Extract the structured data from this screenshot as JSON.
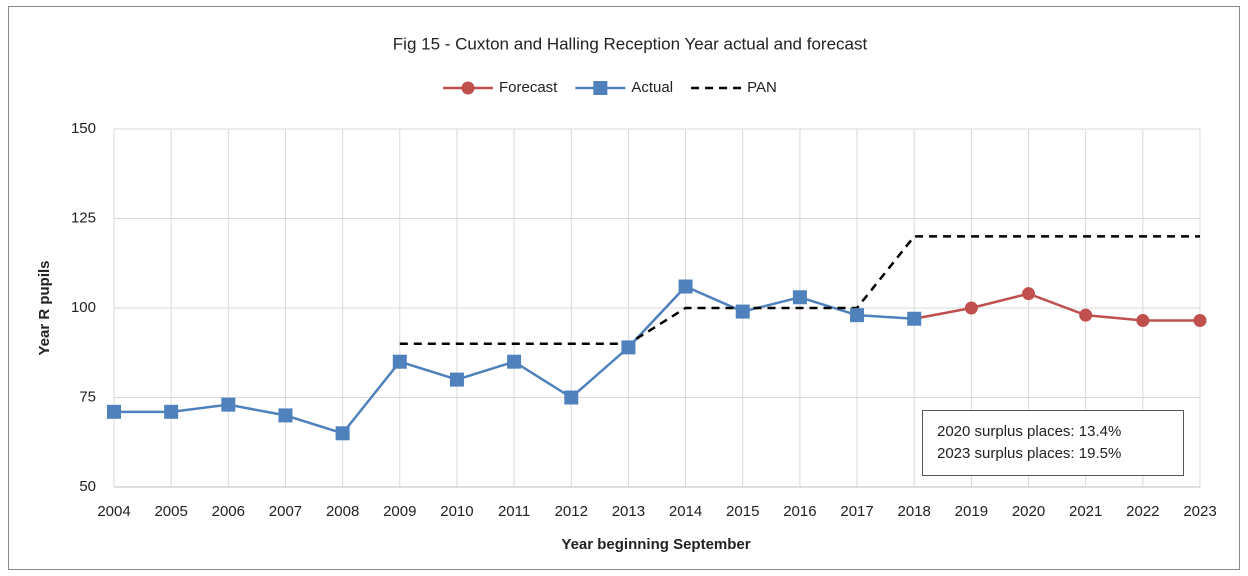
{
  "chart_data": {
    "type": "line",
    "title": "Fig 15 - Cuxton and Halling Reception Year actual and forecast",
    "x_label": "Year beginning September",
    "y_label": "Year R pupils",
    "x": [
      2004,
      2005,
      2006,
      2007,
      2008,
      2009,
      2010,
      2011,
      2012,
      2013,
      2014,
      2015,
      2016,
      2017,
      2018,
      2019,
      2020,
      2021,
      2022,
      2023
    ],
    "xlim": [
      2004,
      2023
    ],
    "ylim": [
      50,
      150
    ],
    "yticks": [
      50,
      75,
      100,
      125,
      150
    ],
    "grid": true,
    "legend": "top",
    "series": [
      {
        "name": "Forecast",
        "color": "#c0504d",
        "marker": "circle",
        "dashed": false,
        "values": [
          null,
          null,
          null,
          null,
          null,
          null,
          null,
          null,
          null,
          null,
          null,
          null,
          null,
          null,
          97,
          100,
          104,
          98,
          96.5,
          96.5
        ]
      },
      {
        "name": "Actual",
        "color": "#4f81bd",
        "marker": "square",
        "dashed": false,
        "values": [
          71,
          71,
          73,
          70,
          65,
          85,
          80,
          85,
          75,
          89,
          106,
          99,
          103,
          98,
          97,
          null,
          null,
          null,
          null,
          null
        ]
      },
      {
        "name": "PAN",
        "color": "#000000",
        "marker": "none",
        "dashed": true,
        "values": [
          null,
          null,
          null,
          null,
          null,
          90,
          90,
          90,
          90,
          90,
          100,
          100,
          100,
          100,
          120,
          120,
          120,
          120,
          120,
          120
        ]
      }
    ],
    "annotations": [
      "2020 surplus places: 13.4%",
      "2023 surplus places: 19.5%"
    ]
  }
}
